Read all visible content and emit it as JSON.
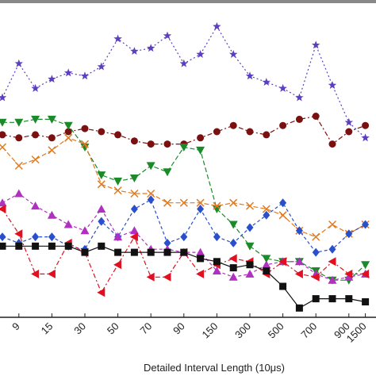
{
  "chart_data": {
    "type": "line",
    "x_label": "Detailed Interval Length (10μs)",
    "categories": [
      null,
      "9",
      null,
      "15",
      null,
      "30",
      null,
      "50",
      null,
      "70",
      null,
      "90",
      null,
      "150",
      null,
      "300",
      null,
      "500",
      null,
      "700",
      null,
      "900",
      "1500"
    ],
    "ylim": [
      0,
      100
    ],
    "yticks": [],
    "grid": false,
    "series": [
      {
        "color": "#5b3fbf",
        "marker": "star",
        "dash": "2,3",
        "values": [
          71,
          82,
          74,
          77,
          79,
          78,
          81,
          90,
          86,
          87,
          91,
          82,
          85,
          94,
          85,
          78,
          76,
          74,
          71,
          88,
          75,
          63,
          58
        ]
      },
      {
        "color": "#7b1010",
        "marker": "circle",
        "dash": "6,3,2,3",
        "values": [
          59,
          58,
          59,
          58,
          60,
          61,
          60,
          59,
          57,
          56,
          56,
          56,
          58,
          60,
          62,
          60,
          59,
          62,
          64,
          65,
          56,
          60,
          62
        ]
      },
      {
        "color": "#1a8a2a",
        "marker": "tri-down",
        "dash": "6,3",
        "values": [
          63,
          63,
          64,
          64,
          62,
          55,
          46,
          44,
          45,
          49,
          47,
          55,
          54,
          35,
          30,
          23,
          19,
          18,
          18,
          15,
          12,
          12,
          17
        ]
      },
      {
        "color": "#e07a20",
        "marker": "cross",
        "dash": "6,3",
        "values": [
          55,
          49,
          51,
          54,
          58,
          56,
          43,
          41,
          40,
          40,
          37,
          37,
          37,
          36,
          37,
          36,
          35,
          33,
          28,
          26,
          30,
          27,
          30
        ]
      },
      {
        "color": "#2a4fcc",
        "marker": "diamond",
        "dash": "4,3",
        "values": [
          26,
          24,
          26,
          26,
          23,
          22,
          31,
          26,
          35,
          38,
          24,
          26,
          35,
          26,
          24,
          29,
          33,
          37,
          28,
          21,
          22,
          27,
          30
        ]
      },
      {
        "color": "#b030c0",
        "marker": "tri-up",
        "dash": "4,3",
        "values": [
          37,
          40,
          36,
          33,
          30,
          28,
          35,
          26,
          28,
          22,
          22,
          21,
          21,
          15,
          13,
          14,
          17,
          18,
          18,
          14,
          12,
          13,
          14
        ]
      },
      {
        "color": "#e01020",
        "marker": "tri-left",
        "dash": "6,3,2,3",
        "values": [
          35,
          27,
          14,
          14,
          24,
          21,
          8,
          17,
          26,
          13,
          13,
          21,
          14,
          17,
          19,
          18,
          14,
          18,
          14,
          13,
          18,
          14,
          14
        ]
      },
      {
        "color": "#111111",
        "marker": "square",
        "dash": "none",
        "values": [
          23,
          23,
          23,
          23,
          23,
          21,
          23,
          21,
          21,
          21,
          21,
          21,
          19,
          18,
          16,
          17,
          15,
          10,
          3,
          6,
          6,
          6,
          5
        ]
      }
    ]
  }
}
